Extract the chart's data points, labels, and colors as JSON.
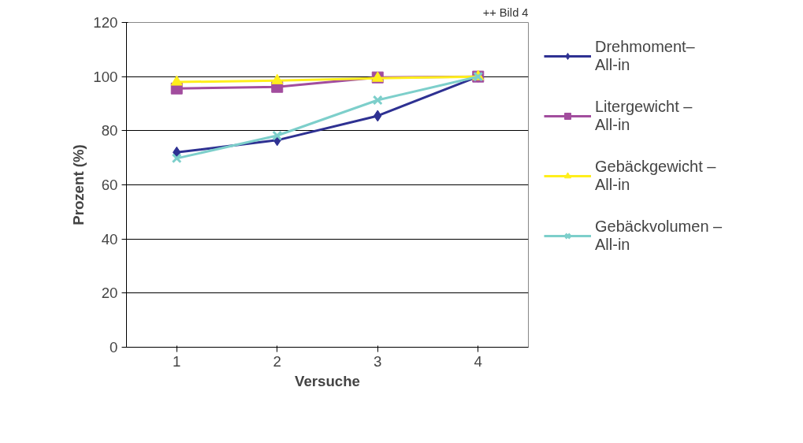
{
  "chart_data": {
    "type": "line",
    "xlabel": "Versuche",
    "ylabel": "Prozent (%)",
    "x": [
      1,
      2,
      3,
      4
    ],
    "xlim": [
      0.5,
      4.5
    ],
    "xticks": [
      1,
      2,
      3,
      4
    ],
    "ylim": [
      0,
      120
    ],
    "yticks": [
      0,
      20,
      40,
      60,
      80,
      100,
      120
    ],
    "grid": "y",
    "legend": "right",
    "annotations": [
      "++ Bild 4"
    ],
    "series": [
      {
        "name": "Drehmoment–\nAll-in",
        "color": "#2e3192",
        "marker": "diamond",
        "values": [
          72,
          76.5,
          85.5,
          100
        ]
      },
      {
        "name": "Litergewicht –\nAll-in",
        "color": "#a24d9e",
        "marker": "square",
        "values": [
          95.6,
          96.2,
          99.7,
          100
        ]
      },
      {
        "name": "Gebäckgewicht –\nAll-in",
        "color": "#ffef1c",
        "marker": "triangle",
        "values": [
          98,
          98.5,
          99.4,
          100
        ]
      },
      {
        "name": "Gebäckvolumen –\nAll-in",
        "color": "#7dcfcb",
        "marker": "x",
        "values": [
          69.8,
          78.2,
          91.3,
          100
        ]
      }
    ]
  }
}
